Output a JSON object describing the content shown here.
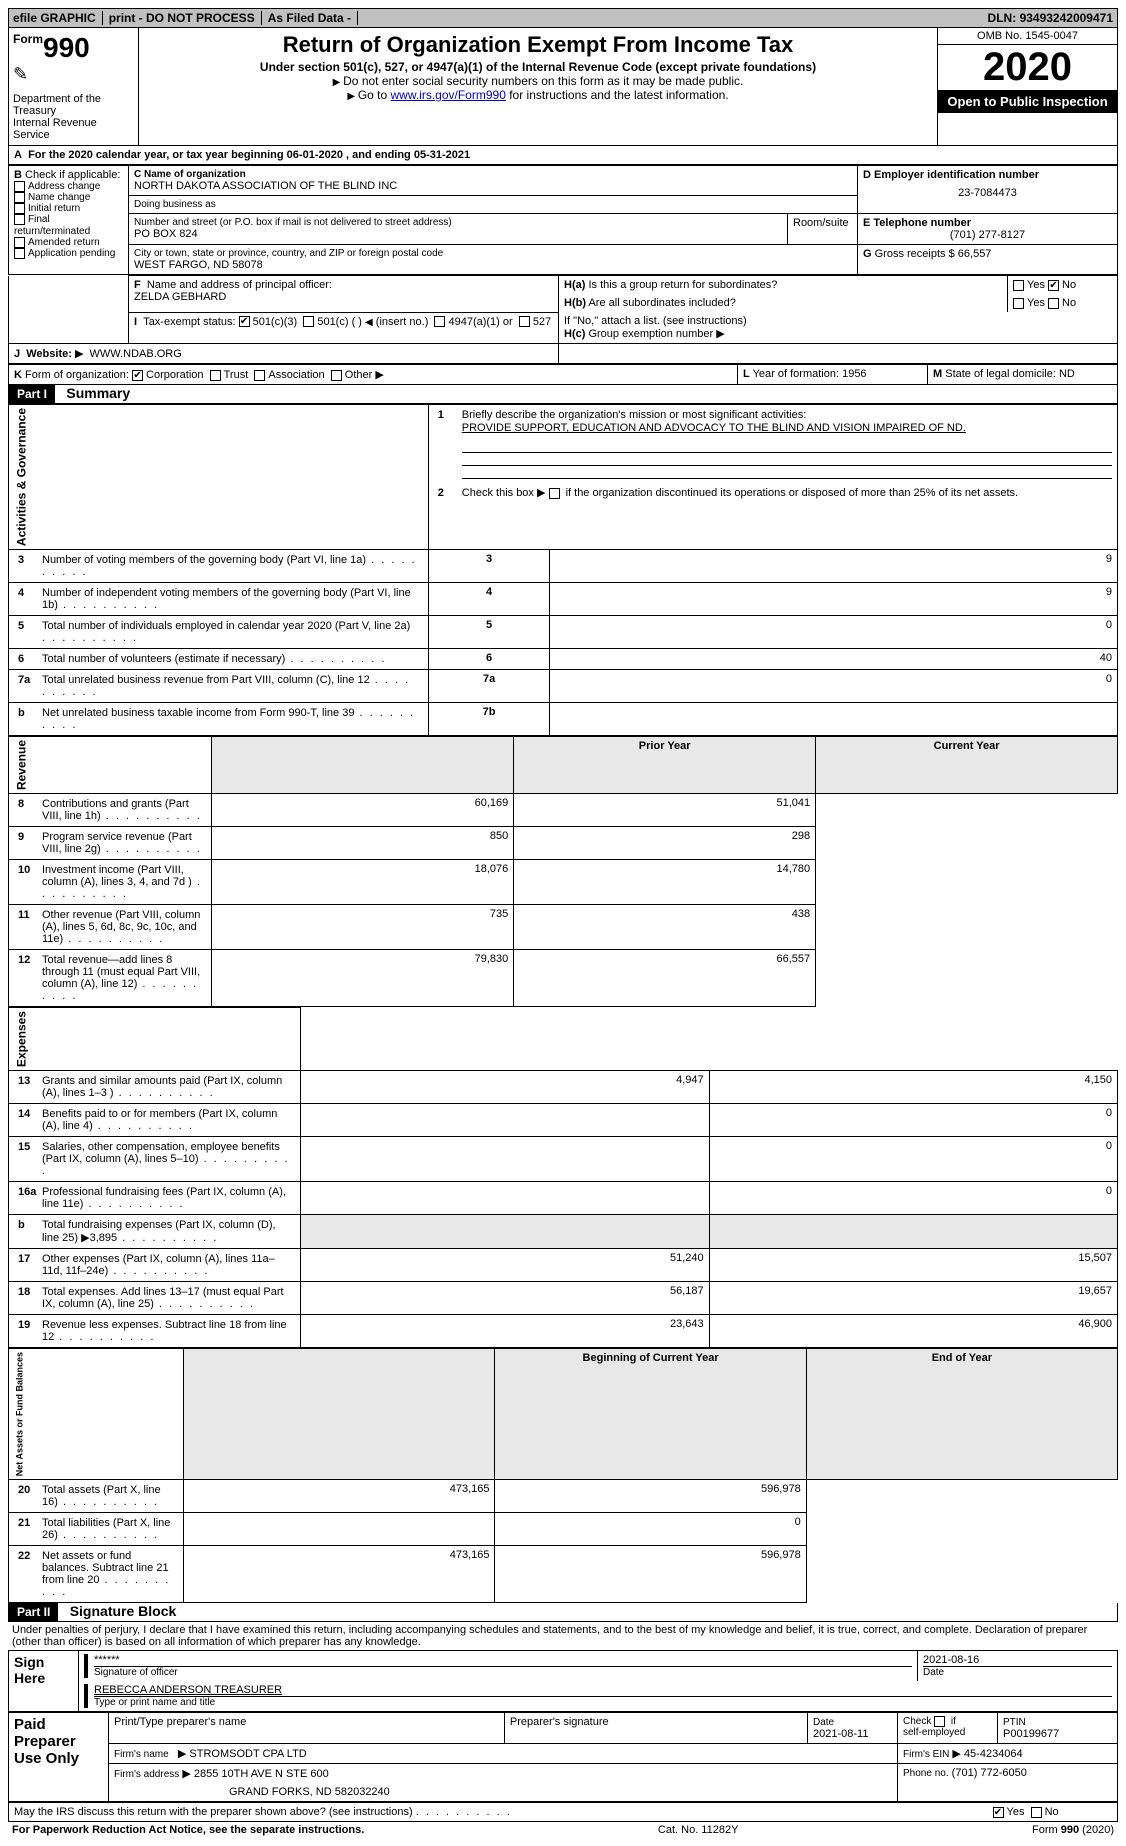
{
  "topbar": {
    "efile": "efile GRAPHIC",
    "print": "print - DO NOT PROCESS",
    "asfiled": "As Filed Data -",
    "dln_label": "DLN:",
    "dln": "93493242009471"
  },
  "header": {
    "form_prefix": "Form",
    "form_num": "990",
    "dept": "Department of the Treasury",
    "irs": "Internal Revenue Service",
    "title": "Return of Organization Exempt From Income Tax",
    "under": "Under section 501(c), 527, or 4947(a)(1) of the Internal Revenue Code (except private foundations)",
    "ssn": "Do not enter social security numbers on this form as it may be made public.",
    "goto_pre": "Go to ",
    "goto_link": "www.irs.gov/Form990",
    "goto_post": " for instructions and the latest information.",
    "omb": "OMB No. 1545-0047",
    "year": "2020",
    "inspection": "Open to Public Inspection"
  },
  "rowA": {
    "label": "A",
    "text": "For the 2020 calendar year, or tax year beginning 06-01-2020   , and ending 05-31-2021"
  },
  "boxB": {
    "label": "B",
    "intro": "Check if applicable:",
    "items": [
      "Address change",
      "Name change",
      "Initial return",
      "Final return/terminated",
      "Amended return",
      "Application pending"
    ]
  },
  "boxC": {
    "name_label": "C Name of organization",
    "name": "NORTH DAKOTA ASSOCIATION OF THE BLIND INC",
    "dba_label": "Doing business as",
    "dba": "",
    "street_label": "Number and street (or P.O. box if mail is not delivered to street address)",
    "room_label": "Room/suite",
    "street": "PO BOX 824",
    "city_label": "City or town, state or province, country, and ZIP or foreign postal code",
    "city": "WEST FARGO, ND  58078"
  },
  "boxD": {
    "label": "D Employer identification number",
    "ein": "23-7084473"
  },
  "boxE": {
    "label": "E Telephone number",
    "phone": "(701) 277-8127"
  },
  "boxG": {
    "label": "G",
    "text": "Gross receipts $",
    "val": "66,557"
  },
  "boxF": {
    "label": "F",
    "text": "Name and address of principal officer:",
    "name": "ZELDA GEBHARD"
  },
  "boxH": {
    "a_label": "H(a)",
    "a_text": "Is this a group return for subordinates?",
    "b_label": "H(b)",
    "b_text": "Are all subordinates included?",
    "b_note": "If \"No,\" attach a list. (see instructions)",
    "c_label": "H(c)",
    "c_text": "Group exemption number"
  },
  "boxI": {
    "label": "I",
    "text": "Tax-exempt status:",
    "opts": [
      "501(c)(3)",
      "501(c) (   )",
      "(insert no.)",
      "4947(a)(1) or",
      "527"
    ]
  },
  "boxJ": {
    "label": "J",
    "text": "Website:",
    "val": "WWW.NDAB.ORG"
  },
  "boxK": {
    "label": "K",
    "text": "Form of organization:",
    "opts": [
      "Corporation",
      "Trust",
      "Association",
      "Other"
    ]
  },
  "boxL": {
    "label": "L",
    "text": "Year of formation:",
    "val": "1956"
  },
  "boxM": {
    "label": "M",
    "text": "State of legal domicile:",
    "val": "ND"
  },
  "part1": {
    "hdr": "Part I",
    "title": "Summary",
    "q1": "Briefly describe the organization's mission or most significant activities:",
    "mission": "PROVIDE SUPPORT, EDUCATION AND ADVOCACY TO THE BLIND AND VISION IMPAIRED OF ND.",
    "q2": "Check this box",
    "q2b": "if the organization discontinued its operations or disposed of more than 25% of its net assets."
  },
  "governance_rows": [
    {
      "n": "3",
      "txt": "Number of voting members of the governing body (Part VI, line 1a)",
      "box": "3",
      "val": "9"
    },
    {
      "n": "4",
      "txt": "Number of independent voting members of the governing body (Part VI, line 1b)",
      "box": "4",
      "val": "9"
    },
    {
      "n": "5",
      "txt": "Total number of individuals employed in calendar year 2020 (Part V, line 2a)",
      "box": "5",
      "val": "0"
    },
    {
      "n": "6",
      "txt": "Total number of volunteers (estimate if necessary)",
      "box": "6",
      "val": "40"
    },
    {
      "n": "7a",
      "txt": "Total unrelated business revenue from Part VIII, column (C), line 12",
      "box": "7a",
      "val": "0"
    },
    {
      "n": "b",
      "txt": "Net unrelated business taxable income from Form 990-T, line 39",
      "box": "7b",
      "val": ""
    }
  ],
  "twocol_headers": {
    "prior": "Prior Year",
    "current": "Current Year"
  },
  "revenue_rows": [
    {
      "n": "8",
      "txt": "Contributions and grants (Part VIII, line 1h)",
      "p": "60,169",
      "c": "51,041"
    },
    {
      "n": "9",
      "txt": "Program service revenue (Part VIII, line 2g)",
      "p": "850",
      "c": "298"
    },
    {
      "n": "10",
      "txt": "Investment income (Part VIII, column (A), lines 3, 4, and 7d )",
      "p": "18,076",
      "c": "14,780"
    },
    {
      "n": "11",
      "txt": "Other revenue (Part VIII, column (A), lines 5, 6d, 8c, 9c, 10c, and 11e)",
      "p": "735",
      "c": "438"
    },
    {
      "n": "12",
      "txt": "Total revenue—add lines 8 through 11 (must equal Part VIII, column (A), line 12)",
      "p": "79,830",
      "c": "66,557"
    }
  ],
  "expense_rows": [
    {
      "n": "13",
      "txt": "Grants and similar amounts paid (Part IX, column (A), lines 1–3 )",
      "p": "4,947",
      "c": "4,150"
    },
    {
      "n": "14",
      "txt": "Benefits paid to or for members (Part IX, column (A), line 4)",
      "p": "",
      "c": "0"
    },
    {
      "n": "15",
      "txt": "Salaries, other compensation, employee benefits (Part IX, column (A), lines 5–10)",
      "p": "",
      "c": "0"
    },
    {
      "n": "16a",
      "txt": "Professional fundraising fees (Part IX, column (A), line 11e)",
      "p": "",
      "c": "0"
    },
    {
      "n": "b",
      "txt": "Total fundraising expenses (Part IX, column (D), line 25) ▶3,895",
      "p": "",
      "c": "",
      "shade": true
    },
    {
      "n": "17",
      "txt": "Other expenses (Part IX, column (A), lines 11a–11d, 11f–24e)",
      "p": "51,240",
      "c": "15,507"
    },
    {
      "n": "18",
      "txt": "Total expenses. Add lines 13–17 (must equal Part IX, column (A), line 25)",
      "p": "56,187",
      "c": "19,657"
    },
    {
      "n": "19",
      "txt": "Revenue less expenses. Subtract line 18 from line 12",
      "p": "23,643",
      "c": "46,900"
    }
  ],
  "netassets_headers": {
    "begin": "Beginning of Current Year",
    "end": "End of Year"
  },
  "netassets_rows": [
    {
      "n": "20",
      "txt": "Total assets (Part X, line 16)",
      "p": "473,165",
      "c": "596,978"
    },
    {
      "n": "21",
      "txt": "Total liabilities (Part X, line 26)",
      "p": "",
      "c": "0"
    },
    {
      "n": "22",
      "txt": "Net assets or fund balances. Subtract line 21 from line 20",
      "p": "473,165",
      "c": "596,978"
    }
  ],
  "part2": {
    "hdr": "Part II",
    "title": "Signature Block",
    "perjury": "Under penalties of perjury, I declare that I have examined this return, including accompanying schedules and statements, and to the best of my knowledge and belief, it is true, correct, and complete. Declaration of preparer (other than officer) is based on all information of which preparer has any knowledge."
  },
  "sign": {
    "label": "Sign Here",
    "sig_label": "Signature of officer",
    "sig": "******",
    "date_label": "Date",
    "date": "2021-08-16",
    "name_label": "Type or print name and title",
    "name": "REBECCA ANDERSON TREASURER"
  },
  "preparer": {
    "label": "Paid Preparer Use Only",
    "cols": [
      "Print/Type preparer's name",
      "Preparer's signature",
      "Date",
      "",
      "PTIN"
    ],
    "date": "2021-08-11",
    "self_employed": "Check       if self-employed",
    "ptin": "P00199677",
    "firm_name_label": "Firm's name",
    "firm_name": "STROMSODT CPA LTD",
    "firm_ein_label": "Firm's EIN",
    "firm_ein": "45-4234064",
    "firm_addr_label": "Firm's address",
    "firm_addr": "2855 10TH AVE N STE 600",
    "firm_city": "GRAND FORKS, ND  582032240",
    "phone_label": "Phone no.",
    "phone": "(701) 772-6050"
  },
  "footer": {
    "discuss": "May the IRS discuss this return with the preparer shown above? (see instructions)",
    "paperwork": "For Paperwork Reduction Act Notice, see the separate instructions.",
    "cat": "Cat. No. 11282Y",
    "form": "Form 990 (2020)"
  },
  "side_labels": {
    "gov": "Activities & Governance",
    "rev": "Revenue",
    "exp": "Expenses",
    "net": "Net Assets or Fund Balances"
  }
}
